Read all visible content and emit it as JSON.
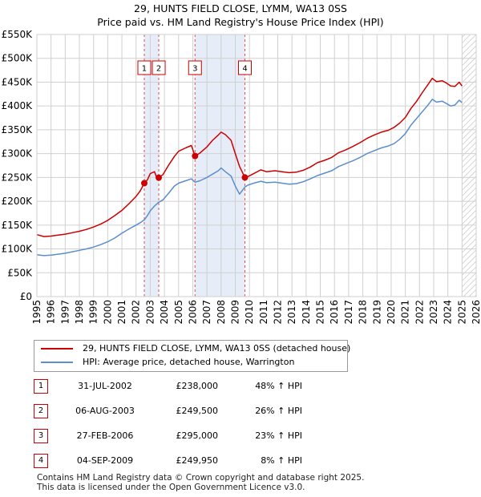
{
  "title_line1": "29, HUNTS FIELD CLOSE, LYMM, WA13 0SS",
  "title_line2": "Price paid vs. HM Land Registry's House Price Index (HPI)",
  "chart_data": {
    "type": "line",
    "xlim": [
      1995,
      2026
    ],
    "ylim": [
      0,
      550000
    ],
    "y_ticks": [
      {
        "value": 0,
        "label": "£0"
      },
      {
        "value": 50000,
        "label": "£50K"
      },
      {
        "value": 100000,
        "label": "£100K"
      },
      {
        "value": 150000,
        "label": "£150K"
      },
      {
        "value": 200000,
        "label": "£200K"
      },
      {
        "value": 250000,
        "label": "£250K"
      },
      {
        "value": 300000,
        "label": "£300K"
      },
      {
        "value": 350000,
        "label": "£350K"
      },
      {
        "value": 400000,
        "label": "£400K"
      },
      {
        "value": 450000,
        "label": "£450K"
      },
      {
        "value": 500000,
        "label": "£500K"
      },
      {
        "value": 550000,
        "label": "£550K"
      }
    ],
    "x_ticks": [
      "1995",
      "1996",
      "1997",
      "1998",
      "1999",
      "2000",
      "2001",
      "2002",
      "2003",
      "2004",
      "2005",
      "2006",
      "2007",
      "2008",
      "2009",
      "2010",
      "2011",
      "2012",
      "2013",
      "2014",
      "2015",
      "2016",
      "2017",
      "2018",
      "2019",
      "2020",
      "2021",
      "2022",
      "2023",
      "2024",
      "2025",
      "2026"
    ],
    "shaded_periods": [
      [
        2002.58,
        2003.6
      ],
      [
        2006.16,
        2009.68
      ]
    ],
    "forecast_from": 2025.0,
    "series": [
      {
        "name": "29, HUNTS FIELD CLOSE, LYMM, WA13 0SS (detached house)",
        "color": "#cc0000",
        "points": [
          [
            1995.0,
            130000
          ],
          [
            1995.5,
            126000
          ],
          [
            1996.0,
            127000
          ],
          [
            1996.5,
            129000
          ],
          [
            1997.0,
            131000
          ],
          [
            1997.5,
            134000
          ],
          [
            1998.0,
            137000
          ],
          [
            1998.5,
            141000
          ],
          [
            1999.0,
            146000
          ],
          [
            1999.5,
            152000
          ],
          [
            2000.0,
            160000
          ],
          [
            2000.5,
            170000
          ],
          [
            2001.0,
            181000
          ],
          [
            2001.5,
            195000
          ],
          [
            2002.0,
            210000
          ],
          [
            2002.3,
            222000
          ],
          [
            2002.58,
            238000
          ],
          [
            2002.8,
            245000
          ],
          [
            2003.0,
            258000
          ],
          [
            2003.3,
            262000
          ],
          [
            2003.45,
            250000
          ],
          [
            2003.6,
            249500
          ],
          [
            2003.9,
            256000
          ],
          [
            2004.3,
            276000
          ],
          [
            2004.7,
            294000
          ],
          [
            2005.0,
            305000
          ],
          [
            2005.5,
            312000
          ],
          [
            2005.9,
            317000
          ],
          [
            2006.16,
            295000
          ],
          [
            2006.5,
            301000
          ],
          [
            2007.0,
            314000
          ],
          [
            2007.4,
            328000
          ],
          [
            2007.8,
            339000
          ],
          [
            2008.0,
            345000
          ],
          [
            2008.3,
            340000
          ],
          [
            2008.7,
            328000
          ],
          [
            2009.0,
            300000
          ],
          [
            2009.3,
            273000
          ],
          [
            2009.68,
            249950
          ],
          [
            2009.9,
            252000
          ],
          [
            2010.3,
            258000
          ],
          [
            2010.8,
            266000
          ],
          [
            2011.2,
            262000
          ],
          [
            2011.8,
            264000
          ],
          [
            2012.3,
            262000
          ],
          [
            2012.8,
            260000
          ],
          [
            2013.3,
            261000
          ],
          [
            2013.8,
            265000
          ],
          [
            2014.3,
            272000
          ],
          [
            2014.8,
            281000
          ],
          [
            2015.3,
            286000
          ],
          [
            2015.8,
            292000
          ],
          [
            2016.3,
            302000
          ],
          [
            2016.8,
            308000
          ],
          [
            2017.3,
            315000
          ],
          [
            2017.8,
            323000
          ],
          [
            2018.3,
            332000
          ],
          [
            2018.8,
            339000
          ],
          [
            2019.3,
            345000
          ],
          [
            2019.8,
            349000
          ],
          [
            2020.2,
            355000
          ],
          [
            2020.6,
            364000
          ],
          [
            2021.0,
            376000
          ],
          [
            2021.4,
            395000
          ],
          [
            2021.8,
            410000
          ],
          [
            2022.2,
            428000
          ],
          [
            2022.6,
            445000
          ],
          [
            2022.9,
            458000
          ],
          [
            2023.2,
            451000
          ],
          [
            2023.6,
            453000
          ],
          [
            2023.9,
            448000
          ],
          [
            2024.2,
            442000
          ],
          [
            2024.5,
            441000
          ],
          [
            2024.8,
            450000
          ],
          [
            2025.0,
            442000
          ]
        ]
      },
      {
        "name": "HPI: Average price, detached house, Warrington",
        "color": "#5b8ecc",
        "points": [
          [
            1995.0,
            88000
          ],
          [
            1995.5,
            86000
          ],
          [
            1996.0,
            87000
          ],
          [
            1996.5,
            89000
          ],
          [
            1997.0,
            91000
          ],
          [
            1997.5,
            94000
          ],
          [
            1998.0,
            97000
          ],
          [
            1998.5,
            100000
          ],
          [
            1999.0,
            104000
          ],
          [
            1999.5,
            109000
          ],
          [
            2000.0,
            115000
          ],
          [
            2000.5,
            123000
          ],
          [
            2001.0,
            133000
          ],
          [
            2001.5,
            142000
          ],
          [
            2002.0,
            150000
          ],
          [
            2002.3,
            155000
          ],
          [
            2002.58,
            161000
          ],
          [
            2002.8,
            170000
          ],
          [
            2003.0,
            180000
          ],
          [
            2003.3,
            190000
          ],
          [
            2003.6,
            198000
          ],
          [
            2003.9,
            203000
          ],
          [
            2004.3,
            217000
          ],
          [
            2004.7,
            232000
          ],
          [
            2005.0,
            238000
          ],
          [
            2005.5,
            243000
          ],
          [
            2005.9,
            247000
          ],
          [
            2006.16,
            240000
          ],
          [
            2006.5,
            243000
          ],
          [
            2007.0,
            250000
          ],
          [
            2007.4,
            257000
          ],
          [
            2007.8,
            264000
          ],
          [
            2008.0,
            270000
          ],
          [
            2008.3,
            262000
          ],
          [
            2008.7,
            253000
          ],
          [
            2009.0,
            232000
          ],
          [
            2009.3,
            215000
          ],
          [
            2009.68,
            230000
          ],
          [
            2009.9,
            234000
          ],
          [
            2010.3,
            238000
          ],
          [
            2010.8,
            242000
          ],
          [
            2011.2,
            239000
          ],
          [
            2011.8,
            240000
          ],
          [
            2012.3,
            238000
          ],
          [
            2012.8,
            236000
          ],
          [
            2013.3,
            237000
          ],
          [
            2013.8,
            241000
          ],
          [
            2014.3,
            247000
          ],
          [
            2014.8,
            254000
          ],
          [
            2015.3,
            259000
          ],
          [
            2015.8,
            264000
          ],
          [
            2016.3,
            273000
          ],
          [
            2016.8,
            279000
          ],
          [
            2017.3,
            285000
          ],
          [
            2017.8,
            292000
          ],
          [
            2018.3,
            300000
          ],
          [
            2018.8,
            306000
          ],
          [
            2019.3,
            312000
          ],
          [
            2019.8,
            316000
          ],
          [
            2020.2,
            321000
          ],
          [
            2020.6,
            330000
          ],
          [
            2021.0,
            342000
          ],
          [
            2021.4,
            360000
          ],
          [
            2021.8,
            374000
          ],
          [
            2022.2,
            388000
          ],
          [
            2022.6,
            402000
          ],
          [
            2022.9,
            414000
          ],
          [
            2023.2,
            408000
          ],
          [
            2023.6,
            410000
          ],
          [
            2023.9,
            405000
          ],
          [
            2024.2,
            400000
          ],
          [
            2024.5,
            402000
          ],
          [
            2024.8,
            412000
          ],
          [
            2025.0,
            407000
          ]
        ]
      }
    ],
    "sales": [
      {
        "num": "1",
        "date": "31-JUL-2002",
        "price": "£238,000",
        "hpi": "48% ↑ HPI",
        "x": 2002.58,
        "y": 238000
      },
      {
        "num": "2",
        "date": "06-AUG-2003",
        "price": "£249,500",
        "hpi": "26% ↑ HPI",
        "x": 2003.6,
        "y": 249500
      },
      {
        "num": "3",
        "date": "27-FEB-2006",
        "price": "£295,000",
        "hpi": "23% ↑ HPI",
        "x": 2006.16,
        "y": 295000
      },
      {
        "num": "4",
        "date": "04-SEP-2009",
        "price": "£249,950",
        "hpi": "8% ↑ HPI",
        "x": 2009.68,
        "y": 249950
      }
    ]
  },
  "legend": {
    "property": "29, HUNTS FIELD CLOSE, LYMM, WA13 0SS (detached house)",
    "hpi": "HPI: Average price, detached house, Warrington",
    "property_color": "#cc0000",
    "hpi_color": "#5b8ecc"
  },
  "footer_line1": "Contains HM Land Registry data © Crown copyright and database right 2025.",
  "footer_line2": "This data is licensed under the Open Government Licence v3.0."
}
